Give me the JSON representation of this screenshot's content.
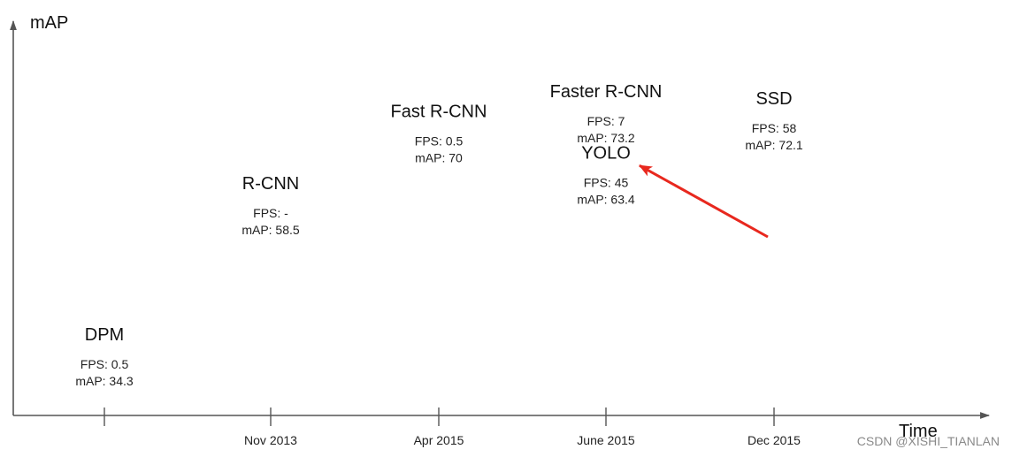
{
  "chart_data": {
    "type": "scatter",
    "title": "",
    "xlabel": "Time",
    "ylabel": "mAP",
    "x_ticks": [
      "Nov 2013",
      "Apr 2015",
      "June 2015",
      "Dec 2015"
    ],
    "grid": false,
    "points": [
      {
        "name": "DPM",
        "date": "",
        "fps": "0.5",
        "map": 34.3
      },
      {
        "name": "R-CNN",
        "date": "Nov 2013",
        "fps": "-",
        "map": 58.5
      },
      {
        "name": "Fast R-CNN",
        "date": "Apr 2015",
        "fps": "0.5",
        "map": 70
      },
      {
        "name": "Faster R-CNN",
        "date": "June 2015",
        "fps": "7",
        "map": 73.2
      },
      {
        "name": "YOLO",
        "date": "June 2015",
        "fps": "45",
        "map": 63.4
      },
      {
        "name": "SSD",
        "date": "Dec 2015",
        "fps": "58",
        "map": 72.1
      }
    ],
    "fps_prefix": "FPS: ",
    "map_prefix": "mAP: ",
    "annotation": {
      "type": "arrow",
      "target": "YOLO",
      "color": "#e8281e"
    }
  },
  "watermark": "CSDN @XISHI_TIANLAN"
}
